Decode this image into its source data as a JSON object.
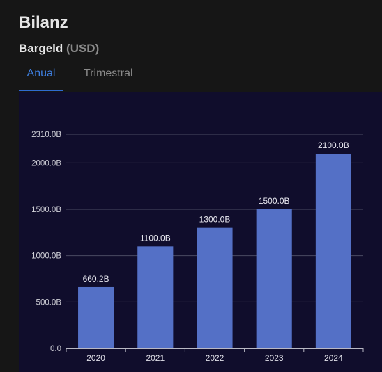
{
  "header": {
    "title": "Bilanz",
    "subtitle": "Bargeld",
    "unit": "(USD)"
  },
  "tabs": [
    {
      "label": "Anual",
      "active": true
    },
    {
      "label": "Trimestral",
      "active": false
    }
  ],
  "colors": {
    "bar": "#5470c6",
    "active_tab": "#2f6bd1",
    "grid": "#4a4a62"
  },
  "chart_data": {
    "type": "bar",
    "categories": [
      "2020",
      "2021",
      "2022",
      "2023",
      "2024"
    ],
    "values": [
      660.2,
      1100.0,
      1300.0,
      1500.0,
      2100.0
    ],
    "value_labels": [
      "660.2B",
      "1100.0B",
      "1300.0B",
      "1500.0B",
      "2100.0B"
    ],
    "y_ticks": [
      0,
      500,
      1000,
      1500,
      2000,
      2310
    ],
    "y_tick_labels": [
      "0.0",
      "500.0B",
      "1000.0B",
      "1500.0B",
      "2000.0B",
      "2310.0B"
    ],
    "ylim": [
      0,
      2310
    ],
    "grid": true
  }
}
